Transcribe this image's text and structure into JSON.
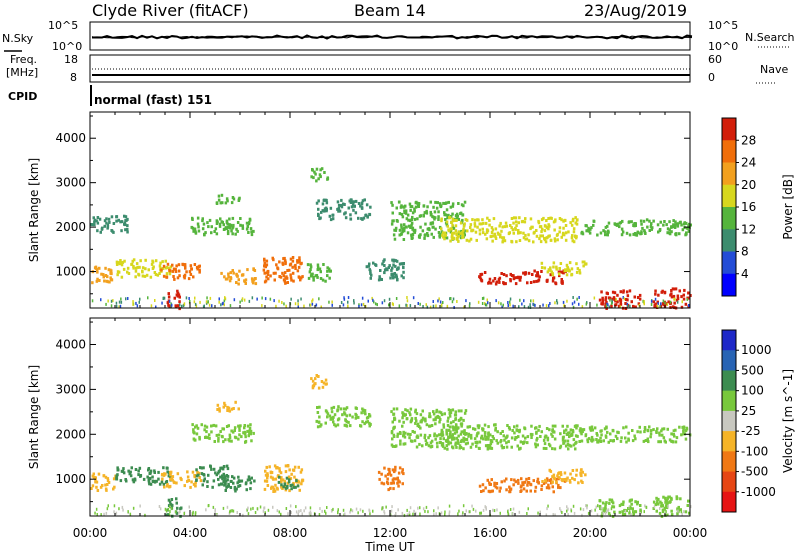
{
  "header": {
    "station": "Clyde River (fitACF)",
    "beam": "Beam 14",
    "date": "23/Aug/2019"
  },
  "status_panel": {
    "nsky_label": "N.Sky",
    "nsearch_label": "N.Search",
    "noise_left_ticks": [
      "10^5",
      "10^0"
    ],
    "noise_right_ticks": [
      "10^5",
      "10^0"
    ],
    "freq_label_line1": "Freq.",
    "freq_label_line2": "[MHz]",
    "freq_ticks": [
      "18",
      "8"
    ],
    "nave_label": "Nave",
    "nave_ticks": [
      "60",
      "0"
    ],
    "cpid_label": "CPID",
    "cpid_value": "normal (fast) 151"
  },
  "x_axis": {
    "label": "Time UT",
    "ticks": [
      "00:00",
      "04:00",
      "08:00",
      "12:00",
      "16:00",
      "20:00",
      "00:00"
    ]
  },
  "chart_data": [
    {
      "type": "heatmap",
      "quantity": "Power",
      "ylabel": "Slant Range [km]",
      "xlabel": "Time UT",
      "xlim_hours": [
        0,
        24
      ],
      "ylim_km": [
        180,
        4590
      ],
      "yticks": [
        1000,
        2000,
        3000,
        4000
      ],
      "colorbar": {
        "label": "Power [dB]",
        "levels": [
          4,
          8,
          12,
          16,
          20,
          24,
          28
        ],
        "colors": [
          "#0000ff",
          "#234cd6",
          "#3c8c6e",
          "#55b43c",
          "#d7d71e",
          "#f2a01e",
          "#f06e0a",
          "#d21e0a"
        ]
      },
      "regions": [
        {
          "t": [
            0.0,
            1.0
          ],
          "r": [
            780,
            1150
          ],
          "level": 20
        },
        {
          "t": [
            1.0,
            3.2
          ],
          "r": [
            900,
            1300
          ],
          "level": 16
        },
        {
          "t": [
            2.8,
            4.4
          ],
          "r": [
            850,
            1200
          ],
          "level": 24
        },
        {
          "t": [
            3.0,
            3.6
          ],
          "r": [
            200,
            600
          ],
          "level": 28
        },
        {
          "t": [
            5.2,
            6.6
          ],
          "r": [
            750,
            1100
          ],
          "level": 20
        },
        {
          "t": [
            6.9,
            8.5
          ],
          "r": [
            750,
            1350
          ],
          "level": 24
        },
        {
          "t": [
            8.6,
            9.6
          ],
          "r": [
            800,
            1200
          ],
          "level": 12
        },
        {
          "t": [
            4.0,
            6.5
          ],
          "r": [
            1850,
            2250
          ],
          "level": 12
        },
        {
          "t": [
            5.0,
            6.0
          ],
          "r": [
            2550,
            2750
          ],
          "level": 12
        },
        {
          "t": [
            0.0,
            1.5
          ],
          "r": [
            1900,
            2300
          ],
          "level": 8
        },
        {
          "t": [
            8.8,
            9.5
          ],
          "r": [
            3050,
            3350
          ],
          "level": 12
        },
        {
          "t": [
            9.0,
            11.2
          ],
          "r": [
            2200,
            2650
          ],
          "level": 8
        },
        {
          "t": [
            11.0,
            12.5
          ],
          "r": [
            800,
            1300
          ],
          "level": 8
        },
        {
          "t": [
            12.0,
            15.0
          ],
          "r": [
            1750,
            2600
          ],
          "level": 12
        },
        {
          "t": [
            14.0,
            19.5
          ],
          "r": [
            1700,
            2250
          ],
          "level": 16
        },
        {
          "t": [
            19.5,
            24.0
          ],
          "r": [
            1850,
            2200
          ],
          "level": 12
        },
        {
          "t": [
            15.5,
            19.0
          ],
          "r": [
            750,
            1050
          ],
          "level": 28
        },
        {
          "t": [
            18.0,
            19.8
          ],
          "r": [
            950,
            1250
          ],
          "level": 16
        },
        {
          "t": [
            20.3,
            22.0
          ],
          "r": [
            200,
            600
          ],
          "level": 28
        },
        {
          "t": [
            22.5,
            24.0
          ],
          "r": [
            200,
            650
          ],
          "level": 28
        }
      ]
    },
    {
      "type": "heatmap",
      "quantity": "Velocity",
      "ylabel": "Slant Range [km]",
      "xlabel": "Time UT",
      "xlim_hours": [
        0,
        24
      ],
      "ylim_km": [
        180,
        4590
      ],
      "yticks": [
        1000,
        2000,
        3000,
        4000
      ],
      "colorbar": {
        "label": "Velocity [m s^-1]",
        "levels": [
          1000,
          500,
          100,
          25,
          -25,
          -100,
          -500,
          -1000
        ],
        "colors": [
          "#1e28c8",
          "#2864b4",
          "#3c8c50",
          "#78c83c",
          "#c8c8c0",
          "#f5b428",
          "#f07814",
          "#e64614",
          "#e61414"
        ]
      },
      "regions": [
        {
          "t": [
            0.0,
            1.0
          ],
          "r": [
            780,
            1150
          ],
          "level": -100
        },
        {
          "t": [
            1.0,
            3.2
          ],
          "r": [
            900,
            1300
          ],
          "level": 100
        },
        {
          "t": [
            2.8,
            4.4
          ],
          "r": [
            850,
            1200
          ],
          "level": -100
        },
        {
          "t": [
            4.2,
            5.5
          ],
          "r": [
            850,
            1350
          ],
          "level": 100
        },
        {
          "t": [
            3.0,
            3.6
          ],
          "r": [
            200,
            600
          ],
          "level": 100
        },
        {
          "t": [
            5.2,
            6.6
          ],
          "r": [
            750,
            1100
          ],
          "level": 100
        },
        {
          "t": [
            6.9,
            8.5
          ],
          "r": [
            750,
            1350
          ],
          "level": -100
        },
        {
          "t": [
            7.5,
            8.3
          ],
          "r": [
            800,
            1100
          ],
          "level": 100
        },
        {
          "t": [
            4.0,
            6.5
          ],
          "r": [
            1850,
            2250
          ],
          "level": 25
        },
        {
          "t": [
            5.0,
            6.0
          ],
          "r": [
            2550,
            2750
          ],
          "level": -100
        },
        {
          "t": [
            8.8,
            9.5
          ],
          "r": [
            3050,
            3350
          ],
          "level": -100
        },
        {
          "t": [
            9.0,
            11.2
          ],
          "r": [
            2200,
            2650
          ],
          "level": 25
        },
        {
          "t": [
            11.5,
            12.5
          ],
          "r": [
            800,
            1300
          ],
          "level": -500
        },
        {
          "t": [
            12.0,
            15.0
          ],
          "r": [
            1750,
            2600
          ],
          "level": 25
        },
        {
          "t": [
            14.0,
            19.5
          ],
          "r": [
            1700,
            2250
          ],
          "level": 25
        },
        {
          "t": [
            19.5,
            24.0
          ],
          "r": [
            1850,
            2200
          ],
          "level": 25
        },
        {
          "t": [
            15.5,
            19.0
          ],
          "r": [
            750,
            1050
          ],
          "level": -500
        },
        {
          "t": [
            18.0,
            19.8
          ],
          "r": [
            950,
            1250
          ],
          "level": -100
        },
        {
          "t": [
            20.3,
            22.0
          ],
          "r": [
            200,
            600
          ],
          "level": 25
        },
        {
          "t": [
            22.5,
            24.0
          ],
          "r": [
            200,
            650
          ],
          "level": 25
        }
      ]
    }
  ]
}
